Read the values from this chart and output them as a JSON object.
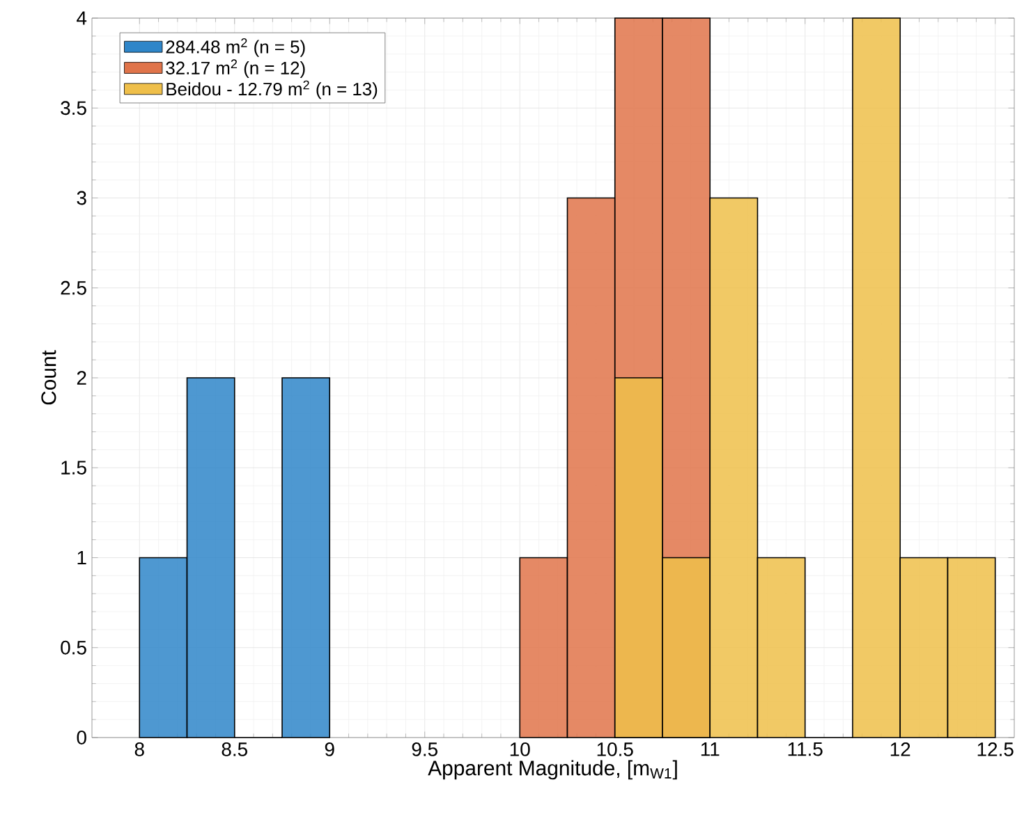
{
  "chart_data": {
    "type": "histogram",
    "xlabel": "Apparent Magnitude, [m$_{W1}$]",
    "ylabel": "Count",
    "series": [
      {
        "name": "284.48  m$^{2}$  (n = 5)",
        "color": "#2f86c9",
        "values": [
          1,
          2,
          0,
          2,
          null,
          null,
          null,
          null,
          null,
          null,
          null,
          null,
          null,
          null,
          null,
          null,
          null,
          null
        ]
      },
      {
        "name": "32.17  m$^{2}$ (n = 12)",
        "color": "#e0744a",
        "values": [
          null,
          null,
          null,
          null,
          null,
          null,
          null,
          null,
          1,
          3,
          4,
          4,
          null,
          null,
          null,
          null,
          null,
          null
        ]
      },
      {
        "name": "Beidou - 12.79 m$^{2}$  (n = 13)",
        "color": "#efbf4a",
        "values": [
          null,
          null,
          null,
          null,
          null,
          null,
          null,
          null,
          null,
          null,
          2,
          1,
          3,
          1,
          0,
          4,
          1,
          1
        ]
      }
    ],
    "bins": [
      8,
      8.25,
      8.5,
      8.75,
      9,
      9.25,
      9.5,
      9.75,
      10,
      10.25,
      10.5,
      10.75,
      11,
      11.25,
      11.5,
      11.75,
      12,
      12.25,
      12.5
    ],
    "xlim": [
      7.75,
      12.6
    ],
    "ylim": [
      0,
      4
    ],
    "xticks": [
      8,
      8.5,
      9,
      9.5,
      10,
      10.5,
      11,
      11.5,
      12,
      12.5
    ],
    "yticks": [
      0,
      0.5,
      1,
      1.5,
      2,
      2.5,
      3,
      3.5,
      4
    ],
    "grid": true,
    "legend": "top left"
  }
}
